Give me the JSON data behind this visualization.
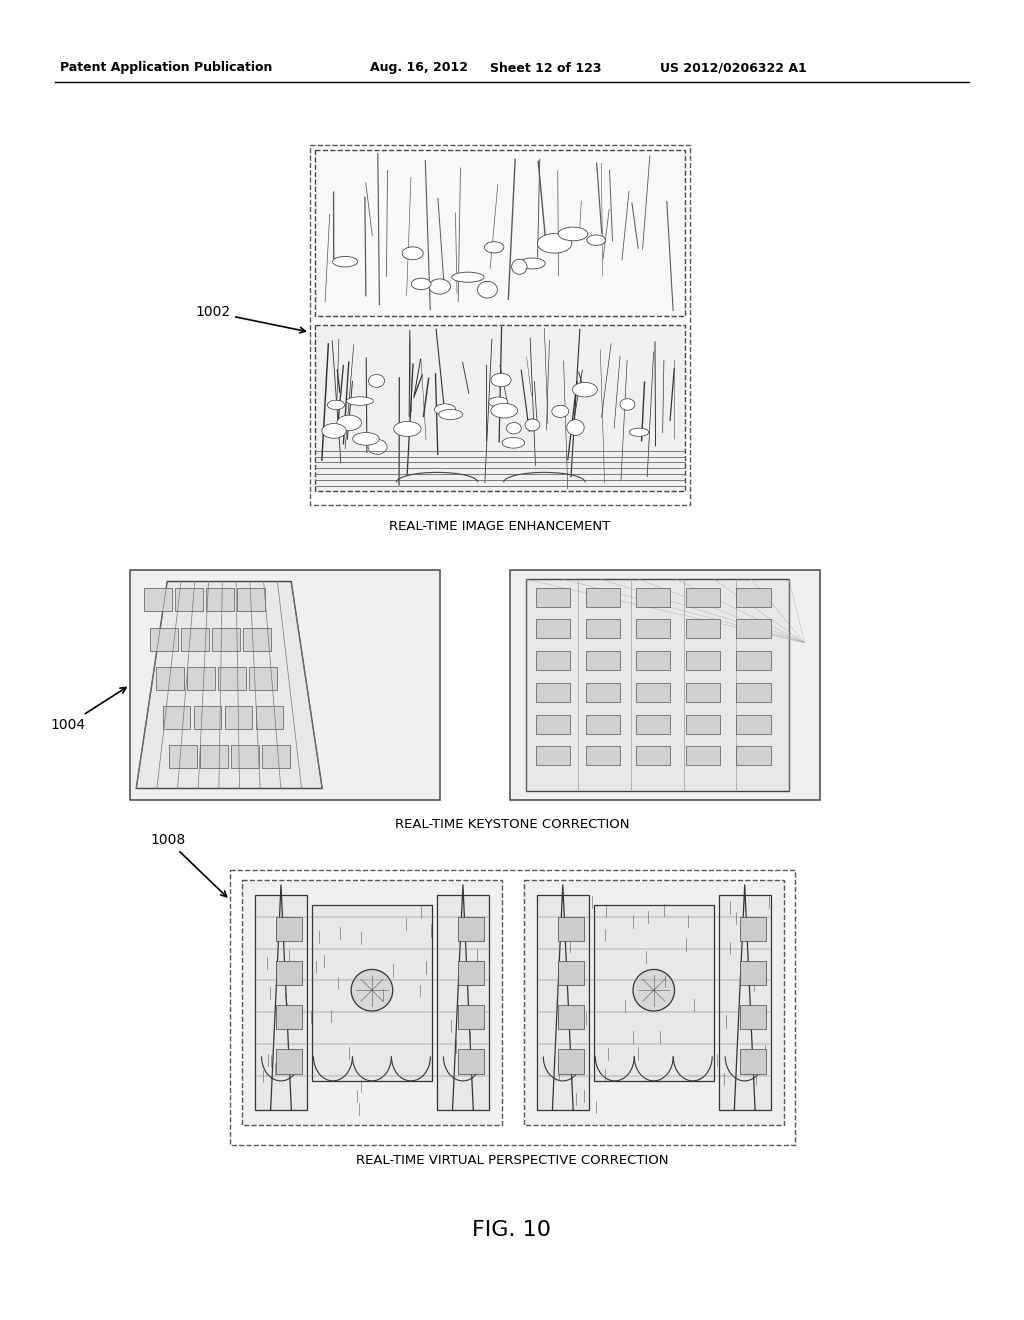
{
  "background_color": "#ffffff",
  "header_text": "Patent Application Publication",
  "header_date": "Aug. 16, 2012",
  "header_sheet": "Sheet 12 of 123",
  "header_patent": "US 2012/0206322 A1",
  "fig_label": "FIG. 10",
  "label_1002": "1002",
  "label_1004": "1004",
  "label_1008": "1008",
  "caption_1": "REAL-TIME IMAGE ENHANCEMENT",
  "caption_2": "REAL-TIME KEYSTONE CORRECTION",
  "caption_3": "REAL-TIME VIRTUAL PERSPECTIVE CORRECTION"
}
